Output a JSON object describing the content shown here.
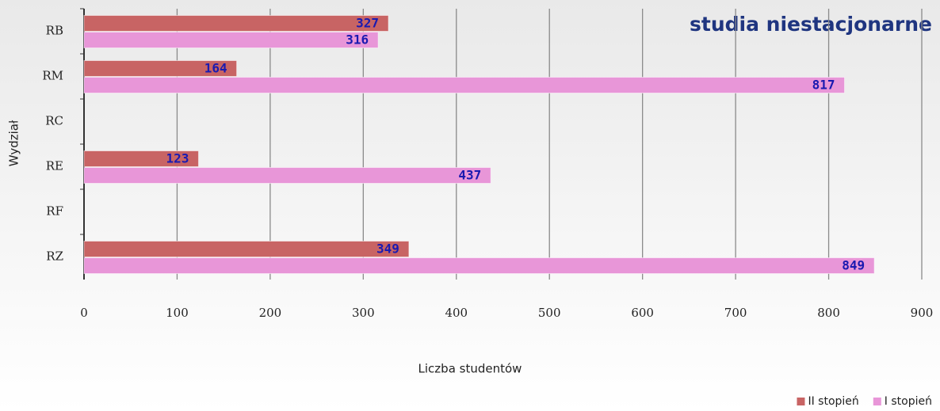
{
  "chart_data": {
    "type": "hbar",
    "title": "studia niestacjonarne",
    "xlabel": "Liczba studentów",
    "ylabel": "Wydział",
    "categories": [
      "RB",
      "RM",
      "RC",
      "RE",
      "RF",
      "RZ"
    ],
    "series": [
      {
        "name": "II stopień",
        "color": "#c86464",
        "values": [
          327,
          164,
          null,
          123,
          null,
          349
        ]
      },
      {
        "name": "I stopień",
        "color": "#e896d8",
        "values": [
          316,
          817,
          null,
          437,
          null,
          849
        ]
      }
    ],
    "xlim": [
      0,
      900
    ],
    "xticks": [
      0,
      100,
      200,
      300,
      400,
      500,
      600,
      700,
      800,
      900
    ],
    "grid": true,
    "legend": "bottom-right"
  }
}
